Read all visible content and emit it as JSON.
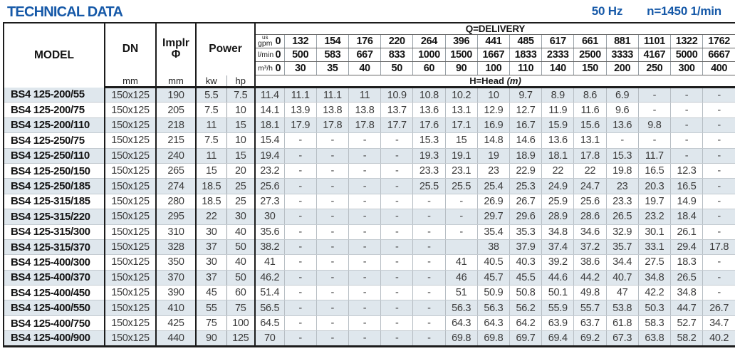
{
  "title": "TECHNICAL DATA",
  "frequency": "50 Hz",
  "speed": "n=1450 1/min",
  "accent_color": "#1659a8",
  "shaded_row_color": "#dfe7ed",
  "table": {
    "headers": {
      "model": "MODEL",
      "dn": "DN",
      "implr": "Implr",
      "implr_symbol": "Φ",
      "power": "Power",
      "mm": "mm",
      "kw": "kw",
      "hp": "hp",
      "delivery": "Q=DELIVERY",
      "head": "H=Head",
      "head_unit": "(m)"
    },
    "delivery_units": [
      {
        "label_top": "us",
        "label": "gpm",
        "values": [
          "0",
          "132",
          "154",
          "176",
          "220",
          "264",
          "396",
          "441",
          "485",
          "617",
          "661",
          "881",
          "1101",
          "1322",
          "1762"
        ]
      },
      {
        "label": "l/min",
        "values": [
          "0",
          "500",
          "583",
          "667",
          "833",
          "1000",
          "1500",
          "1667",
          "1833",
          "2333",
          "2500",
          "3333",
          "4167",
          "5000",
          "6667"
        ]
      },
      {
        "label": "m³/h",
        "values": [
          "0",
          "30",
          "35",
          "40",
          "50",
          "60",
          "90",
          "100",
          "110",
          "140",
          "150",
          "200",
          "250",
          "300",
          "400"
        ]
      }
    ],
    "rows": [
      {
        "model": "BS4 125-200/55",
        "dn": "150x125",
        "implr": "190",
        "kw": "5.5",
        "hp": "7.5",
        "head": [
          "11.4",
          "11.1",
          "11.1",
          "11",
          "10.9",
          "10.8",
          "10.2",
          "10",
          "9.7",
          "8.9",
          "8.6",
          "6.9",
          "-",
          "-",
          "-"
        ]
      },
      {
        "model": "BS4 125-200/75",
        "dn": "150x125",
        "implr": "205",
        "kw": "7.5",
        "hp": "10",
        "head": [
          "14.1",
          "13.9",
          "13.8",
          "13.8",
          "13.7",
          "13.6",
          "13.1",
          "12.9",
          "12.7",
          "11.9",
          "11.6",
          "9.6",
          "-",
          "-",
          "-"
        ]
      },
      {
        "model": "BS4 125-200/110",
        "dn": "150x125",
        "implr": "218",
        "kw": "11",
        "hp": "15",
        "head": [
          "18.1",
          "17.9",
          "17.8",
          "17.8",
          "17.7",
          "17.6",
          "17.1",
          "16.9",
          "16.7",
          "15.9",
          "15.6",
          "13.6",
          "9.8",
          "-",
          "-"
        ]
      },
      {
        "model": "BS4 125-250/75",
        "dn": "150x125",
        "implr": "215",
        "kw": "7.5",
        "hp": "10",
        "head": [
          "15.4",
          "-",
          "-",
          "-",
          "-",
          "15.3",
          "15",
          "14.8",
          "14.6",
          "13.6",
          "13.1",
          "-",
          "-",
          "-",
          "-"
        ]
      },
      {
        "model": "BS4 125-250/110",
        "dn": "150x125",
        "implr": "240",
        "kw": "11",
        "hp": "15",
        "head": [
          "19.4",
          "-",
          "-",
          "-",
          "-",
          "19.3",
          "19.1",
          "19",
          "18.9",
          "18.1",
          "17.8",
          "15.3",
          "11.7",
          "-",
          "-"
        ]
      },
      {
        "model": "BS4 125-250/150",
        "dn": "150x125",
        "implr": "265",
        "kw": "15",
        "hp": "20",
        "head": [
          "23.2",
          "-",
          "-",
          "-",
          "-",
          "23.3",
          "23.1",
          "23",
          "22.9",
          "22",
          "22",
          "19.8",
          "16.5",
          "12.3",
          "-"
        ]
      },
      {
        "model": "BS4 125-250/185",
        "dn": "150x125",
        "implr": "274",
        "kw": "18.5",
        "hp": "25",
        "head": [
          "25.6",
          "-",
          "-",
          "-",
          "-",
          "25.5",
          "25.5",
          "25.4",
          "25.3",
          "24.9",
          "24.7",
          "23",
          "20.3",
          "16.5",
          "-"
        ]
      },
      {
        "model": "BS4 125-315/185",
        "dn": "150x125",
        "implr": "280",
        "kw": "18.5",
        "hp": "25",
        "head": [
          "27.3",
          "-",
          "-",
          "-",
          "-",
          "-",
          "-",
          "26.9",
          "26.7",
          "25.9",
          "25.6",
          "23.3",
          "19.7",
          "14.9",
          "-"
        ]
      },
      {
        "model": "BS4 125-315/220",
        "dn": "150x125",
        "implr": "295",
        "kw": "22",
        "hp": "30",
        "head": [
          "30",
          "-",
          "-",
          "-",
          "-",
          "-",
          "-",
          "29.7",
          "29.6",
          "28.9",
          "28.6",
          "26.5",
          "23.2",
          "18.4",
          "-"
        ]
      },
      {
        "model": "BS4 125-315/300",
        "dn": "150x125",
        "implr": "310",
        "kw": "30",
        "hp": "40",
        "head": [
          "35.6",
          "-",
          "-",
          "-",
          "-",
          "-",
          "-",
          "35.4",
          "35.3",
          "34.8",
          "34.6",
          "32.9",
          "30.1",
          "26.1",
          "-"
        ]
      },
      {
        "model": "BS4 125-315/370",
        "dn": "150x125",
        "implr": "328",
        "kw": "37",
        "hp": "50",
        "head": [
          "38.2",
          "-",
          "-",
          "-",
          "-",
          "-",
          "",
          "38",
          "37.9",
          "37.4",
          "37.2",
          "35.7",
          "33.1",
          "29.4",
          "17.8"
        ]
      },
      {
        "model": "BS4 125-400/300",
        "dn": "150x125",
        "implr": "350",
        "kw": "30",
        "hp": "40",
        "head": [
          "41",
          "-",
          "-",
          "-",
          "-",
          "-",
          "41",
          "40.5",
          "40.3",
          "39.2",
          "38.6",
          "34.4",
          "27.5",
          "18.3",
          "-"
        ]
      },
      {
        "model": "BS4 125-400/370",
        "dn": "150x125",
        "implr": "370",
        "kw": "37",
        "hp": "50",
        "head": [
          "46.2",
          "-",
          "-",
          "-",
          "-",
          "-",
          "46",
          "45.7",
          "45.5",
          "44.6",
          "44.2",
          "40.7",
          "34.8",
          "26.5",
          "-"
        ]
      },
      {
        "model": "BS4 125-400/450",
        "dn": "150x125",
        "implr": "390",
        "kw": "45",
        "hp": "60",
        "head": [
          "51.4",
          "-",
          "-",
          "-",
          "-",
          "-",
          "51",
          "50.9",
          "50.8",
          "50.1",
          "49.8",
          "47",
          "42.2",
          "34.8",
          "-"
        ]
      },
      {
        "model": "BS4 125-400/550",
        "dn": "150x125",
        "implr": "410",
        "kw": "55",
        "hp": "75",
        "head": [
          "56.5",
          "-",
          "-",
          "-",
          "-",
          "-",
          "56.3",
          "56.3",
          "56.2",
          "55.9",
          "55.7",
          "53.8",
          "50.3",
          "44.7",
          "26.7"
        ]
      },
      {
        "model": "BS4 125-400/750",
        "dn": "150x125",
        "implr": "425",
        "kw": "75",
        "hp": "100",
        "head": [
          "64.5",
          "-",
          "-",
          "-",
          "-",
          "-",
          "64.3",
          "64.3",
          "64.2",
          "63.9",
          "63.7",
          "61.8",
          "58.3",
          "52.7",
          "34.7"
        ]
      },
      {
        "model": "BS4 125-400/900",
        "dn": "150x125",
        "implr": "440",
        "kw": "90",
        "hp": "125",
        "head": [
          "70",
          "-",
          "-",
          "-",
          "-",
          "-",
          "69.8",
          "69.8",
          "69.7",
          "69.4",
          "69.2",
          "67.3",
          "63.8",
          "58.2",
          "40.2"
        ]
      }
    ]
  }
}
